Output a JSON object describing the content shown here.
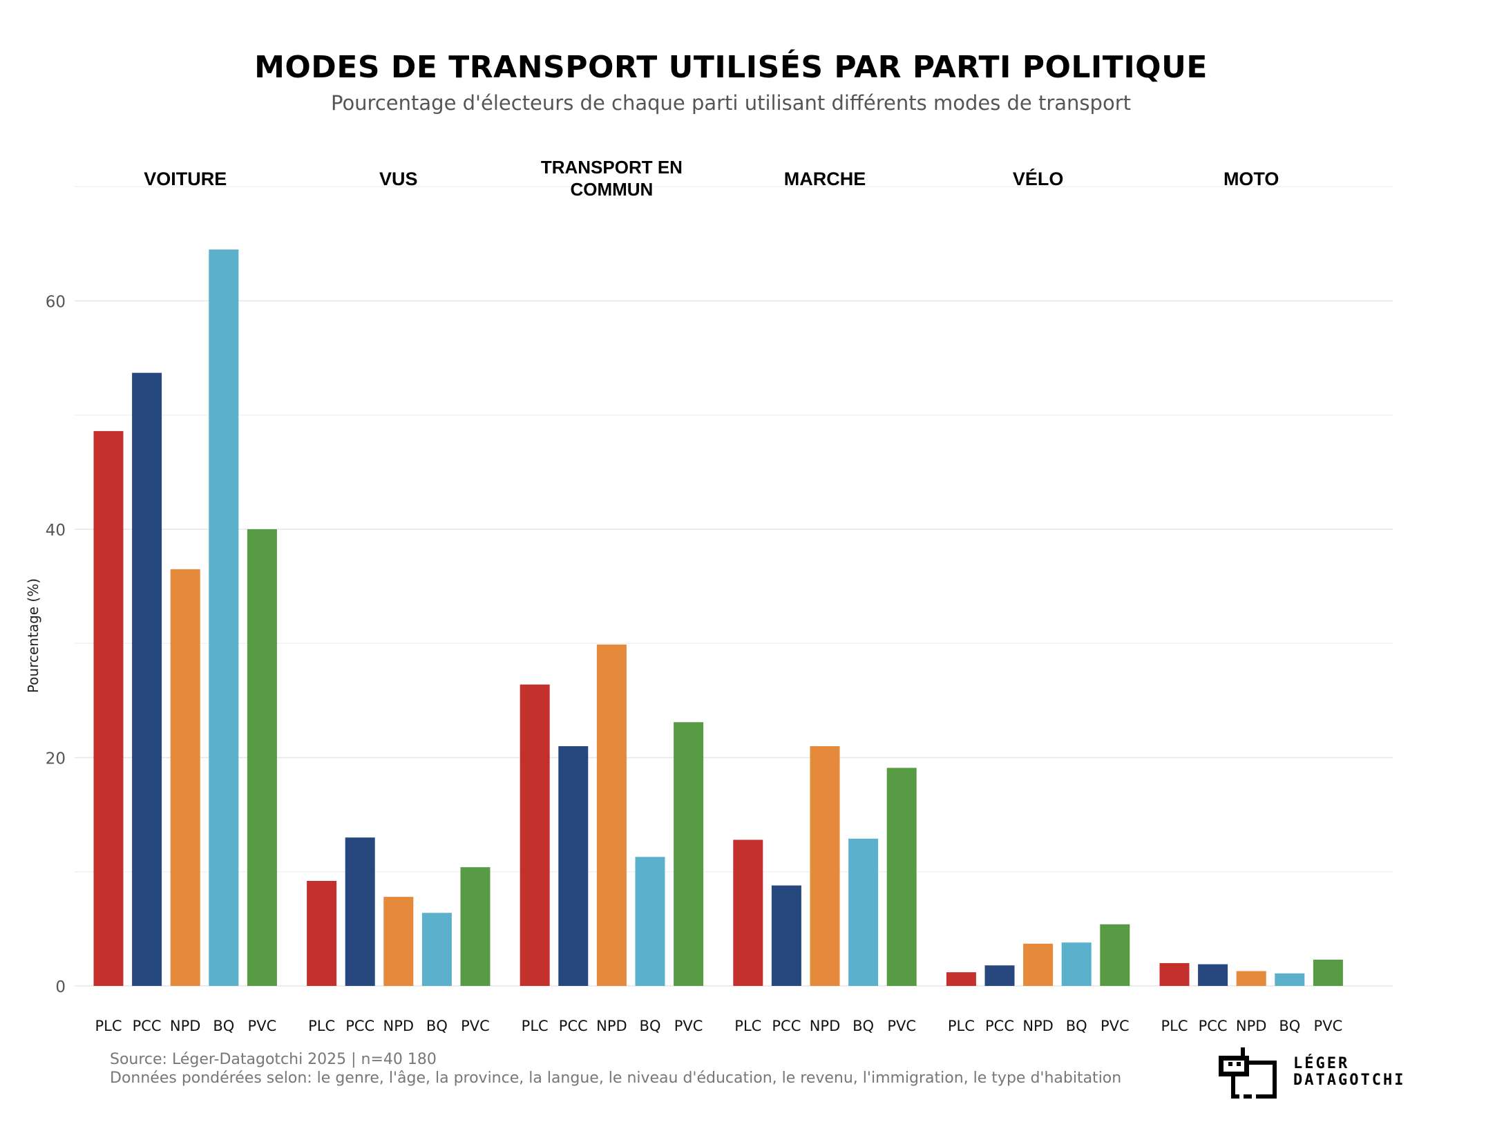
{
  "title": "MODES DE TRANSPORT UTILISÉS PAR PARTI POLITIQUE",
  "subtitle": "Pourcentage d'électeurs de chaque parti utilisant différents modes de transport",
  "footer": {
    "source": "Source: Léger-Datagotchi 2025 | n=40 180",
    "note": "Données pondérées selon: le genre, l'âge, la province, la langue, le niveau d'éducation, le revenu, l'immigration, le type d'habitation"
  },
  "logo": {
    "line1": "LÉGER",
    "line2": "DATAGOTCHI"
  },
  "chart_data": {
    "type": "bar",
    "ylabel": "Pourcentage (%)",
    "xlabel": "",
    "ylim": [
      0,
      70
    ],
    "yticks": [
      0,
      20,
      40,
      60
    ],
    "grid": true,
    "facets": [
      "VOITURE",
      "VUS",
      "TRANSPORT EN COMMUN",
      "MARCHE",
      "VÉLO",
      "MOTO"
    ],
    "categories": [
      "PLC",
      "PCC",
      "NPD",
      "BQ",
      "PVC"
    ],
    "colors": {
      "PLC": "#c4302b",
      "PCC": "#26487e",
      "NPD": "#e5893a",
      "BQ": "#5bb0cb",
      "PVC": "#589b45"
    },
    "values": [
      [
        48.6,
        53.7,
        36.5,
        64.5,
        40.0
      ],
      [
        9.2,
        13.0,
        7.8,
        6.4,
        10.4
      ],
      [
        26.4,
        21.0,
        29.9,
        11.3,
        23.1
      ],
      [
        12.8,
        8.8,
        21.0,
        12.9,
        19.1
      ],
      [
        1.2,
        1.8,
        3.7,
        3.8,
        5.4
      ],
      [
        2.0,
        1.9,
        1.3,
        1.1,
        2.3
      ]
    ]
  }
}
